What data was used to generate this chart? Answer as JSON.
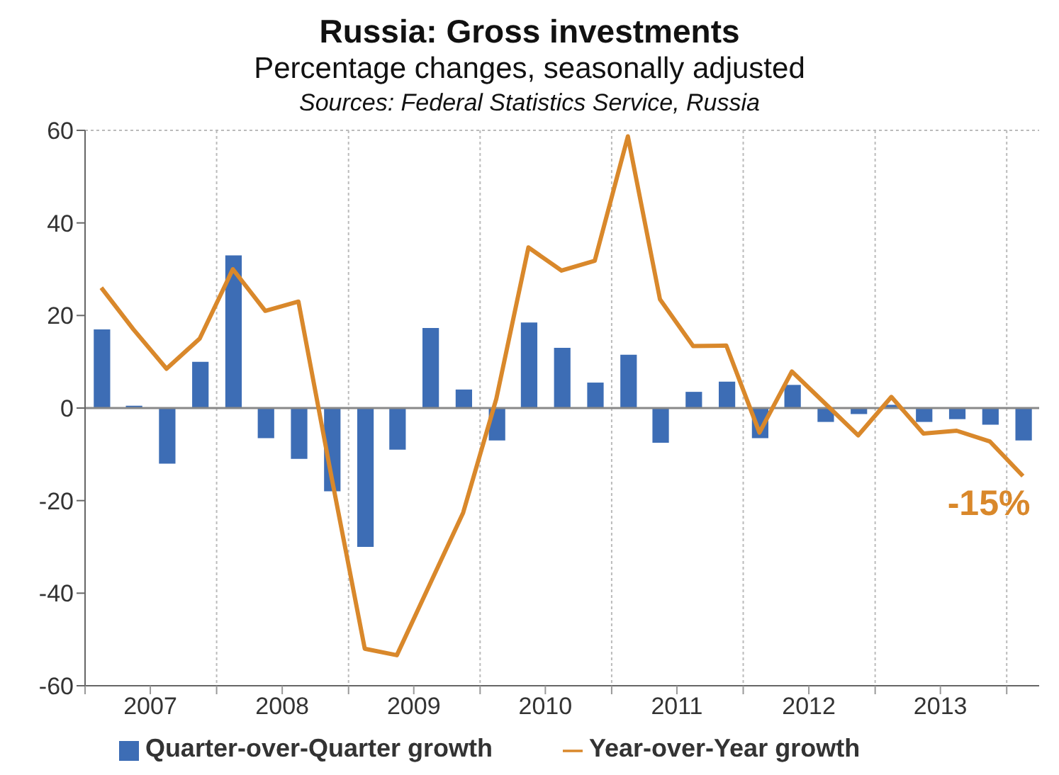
{
  "chart_data": {
    "type": "bar",
    "title": "Russia: Gross investments",
    "subtitle": "Percentage changes, seasonally adjusted",
    "annotations": [
      "Sources: Federal Statistics Service, Russia",
      "-15%"
    ],
    "x": [
      "2007-02-15",
      "2007-05-15",
      "2007-08-15",
      "2007-11-15",
      "2008-02-15",
      "2008-05-15",
      "2008-08-15",
      "2008-11-15",
      "2009-02-15",
      "2009-05-15",
      "2009-08-15",
      "2009-11-15",
      "2010-02-15",
      "2010-05-15",
      "2010-08-15",
      "2010-11-15",
      "2011-02-15",
      "2011-05-15",
      "2011-08-15",
      "2011-11-15",
      "2012-02-15",
      "2012-05-15",
      "2012-08-15",
      "2012-11-15",
      "2013-02-15",
      "2013-05-15",
      "2013-08-15",
      "2013-11-15",
      "2014-02-15"
    ],
    "series": [
      {
        "name": "Quarter-over-Quarter growth",
        "color": "#3d6db5",
        "values": [
          17,
          0.5,
          -12,
          10,
          33,
          -6.5,
          -11,
          -18,
          -30,
          -9,
          17.3,
          4,
          -7,
          18.5,
          13,
          5.5,
          11.5,
          -7.5,
          3.5,
          5.7,
          -6.5,
          5,
          -3,
          -1.3,
          0.7,
          -3,
          -2.4,
          -3.6,
          -7
        ]
      },
      {
        "name": "Year-over-Year growth",
        "type": "line",
        "color": "#d9882b",
        "values": [
          26,
          17,
          8.5,
          15,
          30,
          21,
          23,
          -15,
          -52,
          -53.4,
          -38,
          -22.6,
          2,
          34.7,
          29.7,
          31.8,
          58.7,
          23.5,
          13.4,
          13.5,
          -5.3,
          7.9,
          1,
          -5.9,
          2.4,
          -5.5,
          -4.9,
          -7.2,
          -14.7
        ]
      }
    ],
    "xlim": [
      "2007-01-01",
      "2014-04-01"
    ],
    "xticks": [
      {
        "value": "2007-01-01",
        "label": null
      },
      {
        "value": "2007-07-01",
        "label": "2007"
      },
      {
        "value": "2008-01-01",
        "label": null
      },
      {
        "value": "2008-07-01",
        "label": "2008"
      },
      {
        "value": "2009-01-01",
        "label": null
      },
      {
        "value": "2009-07-01",
        "label": "2009"
      },
      {
        "value": "2010-01-01",
        "label": null
      },
      {
        "value": "2010-07-01",
        "label": "2010"
      },
      {
        "value": "2011-01-01",
        "label": null
      },
      {
        "value": "2011-07-01",
        "label": "2011"
      },
      {
        "value": "2012-01-01",
        "label": null
      },
      {
        "value": "2012-07-01",
        "label": "2012"
      },
      {
        "value": "2013-01-01",
        "label": null
      },
      {
        "value": "2013-07-01",
        "label": "2013"
      },
      {
        "value": "2014-01-01",
        "label": null
      }
    ],
    "ylim": [
      -60,
      60
    ],
    "yticks": [
      -60,
      -40,
      -20,
      0,
      20,
      40,
      60
    ],
    "grid": true,
    "legend": "bottom",
    "marker": "none",
    "line_style": "solid"
  }
}
